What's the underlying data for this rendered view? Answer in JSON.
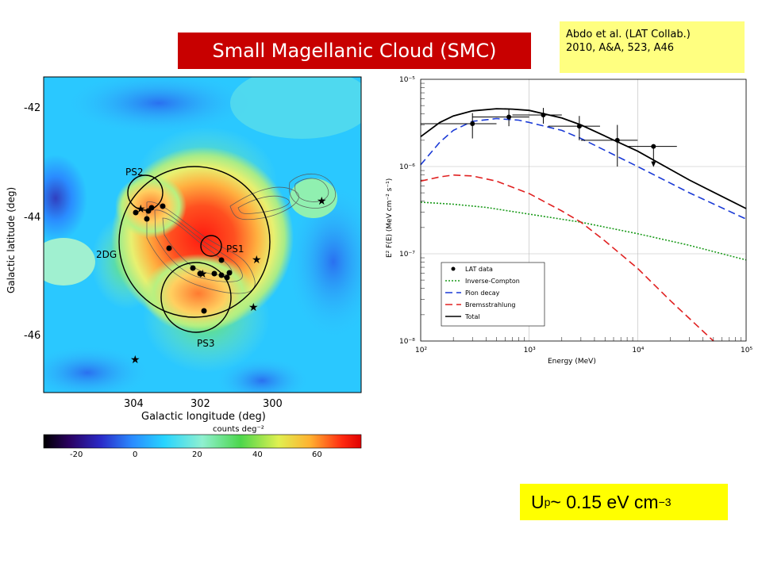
{
  "header": {
    "title": "Small Magellanic Cloud (SMC)",
    "reference_line1": "Abdo et al. (LAT Collab.)",
    "reference_line2": "2010, A&A, 523, A46"
  },
  "energy_density": {
    "prefix": "U",
    "sub": "p",
    "middle": " ~  0.15 eV cm",
    "sup": "−3"
  },
  "chart_data": [
    {
      "type": "heatmap",
      "xlabel": "Galactic longitude (deg)",
      "ylabel": "Galactic latitude (deg)",
      "x_ticks": [
        "304",
        "302",
        "300"
      ],
      "y_ticks": [
        "-42",
        "-44",
        "-46"
      ],
      "colorbar_label": "counts deg⁻²",
      "colorbar_ticks": [
        "-20",
        "0",
        "20",
        "40",
        "60"
      ],
      "annotations": [
        "PS2",
        "2DG",
        "PS1",
        "PS3"
      ],
      "source_markers": "black dots",
      "star_markers": "black stars"
    },
    {
      "type": "line",
      "xlabel": "Energy (MeV)",
      "ylabel": "E² F(E) (MeV cm⁻² s⁻¹)",
      "x_scale": "log",
      "y_scale": "log",
      "xlim": [
        100,
        100000
      ],
      "ylim": [
        1e-08,
        1e-05
      ],
      "x_ticks": [
        "10²",
        "10³",
        "10⁴",
        "10⁵"
      ],
      "y_ticks": [
        "10⁻⁵",
        "10⁻⁶",
        "10⁻⁷",
        "10⁻⁸"
      ],
      "grid": true,
      "legend_position": "bottom-left",
      "points": {
        "name": "LAT data",
        "x": [
          300,
          650,
          1350,
          2900,
          6500,
          14000
        ],
        "y": [
          3.1e-06,
          3.7e-06,
          3.9e-06,
          2.9e-06,
          2e-06,
          1.7e-06
        ],
        "x_err_low": [
          200,
          350,
          650,
          1400,
          3500,
          6000
        ],
        "x_err_high": [
          200,
          350,
          650,
          1600,
          3500,
          9000
        ],
        "y_err": [
          1e-06,
          8e-07,
          8e-07,
          9e-07,
          1e-06,
          null
        ],
        "upper_limit_last": true
      },
      "series": [
        {
          "name": "Inverse-Compton",
          "color": "#1a9a1a",
          "dash": "dotted",
          "x": [
            100,
            200,
            400,
            1000,
            3000,
            10000,
            30000,
            100000
          ],
          "y": [
            3.9e-07,
            3.7e-07,
            3.4e-07,
            2.85e-07,
            2.3e-07,
            1.7e-07,
            1.25e-07,
            8.5e-08
          ]
        },
        {
          "name": "Pion decay",
          "color": "#1a3ad6",
          "dash": "dashed",
          "x": [
            100,
            150,
            200,
            300,
            500,
            800,
            1000,
            2000,
            3000,
            10000,
            30000,
            100000
          ],
          "y": [
            1.05e-06,
            1.9e-06,
            2.6e-06,
            3.3e-06,
            3.55e-06,
            3.4e-06,
            3.2e-06,
            2.6e-06,
            2.1e-06,
            1e-06,
            5e-07,
            2.5e-07
          ]
        },
        {
          "name": "Bremsstrahlung",
          "color": "#e02020",
          "dash": "dashed",
          "x": [
            100,
            150,
            200,
            300,
            500,
            1000,
            2000,
            3000,
            5000,
            10000,
            20000,
            50000
          ],
          "y": [
            6.8e-07,
            7.6e-07,
            8e-07,
            7.8e-07,
            6.8e-07,
            4.9e-07,
            3.1e-07,
            2.3e-07,
            1.4e-07,
            6.8e-08,
            2.9e-08,
            1e-08
          ]
        },
        {
          "name": "Total",
          "color": "#000000",
          "dash": "solid",
          "x": [
            100,
            150,
            200,
            300,
            500,
            700,
            1000,
            2000,
            3000,
            10000,
            30000,
            100000
          ],
          "y": [
            2.2e-06,
            3.2e-06,
            3.8e-06,
            4.35e-06,
            4.6e-06,
            4.55e-06,
            4.4e-06,
            3.6e-06,
            3e-06,
            1.5e-06,
            7e-07,
            3.3e-07
          ]
        }
      ]
    }
  ]
}
